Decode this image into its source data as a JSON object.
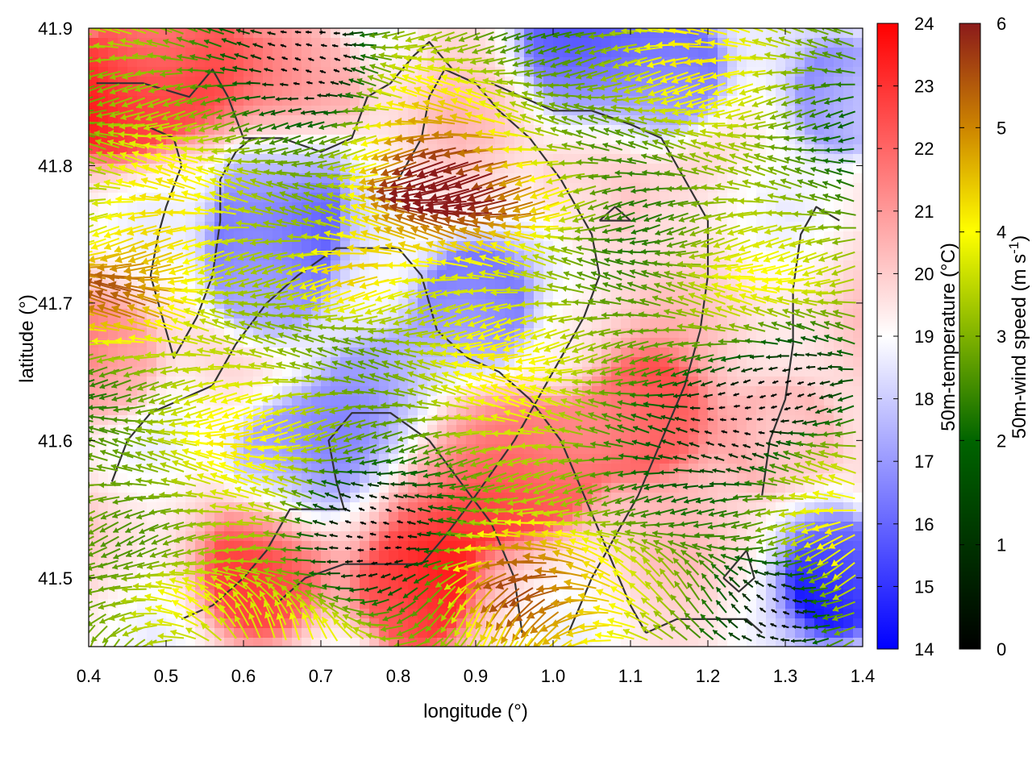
{
  "chart_data": {
    "type": "heatmap",
    "title": "",
    "xlabel": "longitude (°)",
    "ylabel": "latitude (°)",
    "xlim": [
      0.4,
      1.4
    ],
    "ylim": [
      41.45,
      41.9
    ],
    "x_ticks": [
      "0.4",
      "0.5",
      "0.6",
      "0.7",
      "0.8",
      "0.9",
      "1.0",
      "1.1",
      "1.2",
      "1.3",
      "1.4"
    ],
    "y_ticks": [
      "41.5",
      "41.6",
      "41.7",
      "41.8",
      "41.9"
    ],
    "temperature_colorbar": {
      "label": "50m-temperature (°C)",
      "range": [
        14,
        24
      ],
      "ticks": [
        "14",
        "15",
        "16",
        "17",
        "18",
        "19",
        "20",
        "21",
        "22",
        "23",
        "24"
      ],
      "colors": [
        "#0000ff",
        "#ffffff",
        "#ff0000"
      ]
    },
    "wind_colorbar": {
      "label": "50m-wind speed (m s-1)",
      "range": [
        0,
        6
      ],
      "ticks": [
        "0",
        "1",
        "2",
        "3",
        "4",
        "5",
        "6"
      ],
      "colors": [
        "#000000",
        "#006400",
        "#ffff00",
        "#cd8500",
        "#8b1a1a"
      ]
    },
    "temperature_field": {
      "description_free": true,
      "hot_spots": [
        {
          "lon": 0.43,
          "lat": 41.85,
          "t": 23.0
        },
        {
          "lon": 0.52,
          "lat": 41.88,
          "t": 22.5
        },
        {
          "lon": 0.68,
          "lat": 41.86,
          "t": 21.0
        },
        {
          "lon": 0.82,
          "lat": 41.49,
          "t": 23.0
        },
        {
          "lon": 0.62,
          "lat": 41.5,
          "t": 22.5
        },
        {
          "lon": 0.98,
          "lat": 41.58,
          "t": 22.5
        },
        {
          "lon": 1.12,
          "lat": 41.62,
          "t": 22.0
        },
        {
          "lon": 0.88,
          "lat": 41.58,
          "t": 21.5
        },
        {
          "lon": 1.3,
          "lat": 41.6,
          "t": 21.0
        },
        {
          "lon": 1.05,
          "lat": 41.78,
          "t": 20.5
        },
        {
          "lon": 0.42,
          "lat": 41.66,
          "t": 21.0
        }
      ],
      "cold_spots": [
        {
          "lon": 0.65,
          "lat": 41.78,
          "t": 16.5
        },
        {
          "lon": 0.63,
          "lat": 41.72,
          "t": 16.5
        },
        {
          "lon": 0.9,
          "lat": 41.7,
          "t": 16.0
        },
        {
          "lon": 1.15,
          "lat": 41.87,
          "t": 16.0
        },
        {
          "lon": 1.03,
          "lat": 41.89,
          "t": 16.5
        },
        {
          "lon": 1.37,
          "lat": 41.5,
          "t": 15.0
        },
        {
          "lon": 0.66,
          "lat": 41.58,
          "t": 17.0
        },
        {
          "lon": 0.78,
          "lat": 41.63,
          "t": 17.5
        },
        {
          "lon": 1.38,
          "lat": 41.85,
          "t": 17.0
        }
      ]
    },
    "wind_field": {
      "dominant_direction": "from east (arrows pointing west)",
      "strong_zones": [
        {
          "lon": 0.44,
          "lat": 41.7,
          "speed": 6.0
        },
        {
          "lon": 0.87,
          "lat": 41.78,
          "speed": 5.8
        },
        {
          "lon": 0.75,
          "lat": 41.72,
          "speed": 5.5
        },
        {
          "lon": 0.52,
          "lat": 41.48,
          "speed": 5.0
        },
        {
          "lon": 0.95,
          "lat": 41.5,
          "speed": 5.2
        },
        {
          "lon": 1.0,
          "lat": 41.77,
          "speed": 4.8
        }
      ],
      "calm_zones": [
        {
          "lon": 0.76,
          "lat": 41.53,
          "speed": 0.5
        },
        {
          "lon": 0.7,
          "lat": 41.88,
          "speed": 0.6
        },
        {
          "lon": 1.25,
          "lat": 41.62,
          "speed": 0.8
        },
        {
          "lon": 1.33,
          "lat": 41.65,
          "speed": 0.8
        },
        {
          "lon": 1.3,
          "lat": 41.48,
          "speed": 0.8
        }
      ]
    },
    "contours": [
      [
        [
          0.41,
          41.86
        ],
        [
          0.47,
          41.86
        ],
        [
          0.53,
          41.85
        ],
        [
          0.56,
          41.87
        ],
        [
          0.58,
          41.85
        ],
        [
          0.6,
          41.82
        ],
        [
          0.65,
          41.82
        ],
        [
          0.7,
          41.81
        ],
        [
          0.74,
          41.82
        ],
        [
          0.76,
          41.85
        ],
        [
          0.79,
          41.86
        ],
        [
          0.82,
          41.88
        ],
        [
          0.84,
          41.89
        ],
        [
          0.87,
          41.87
        ]
      ],
      [
        [
          0.47,
          41.83
        ],
        [
          0.51,
          41.82
        ],
        [
          0.52,
          41.8
        ],
        [
          0.5,
          41.77
        ],
        [
          0.49,
          41.75
        ],
        [
          0.48,
          41.72
        ],
        [
          0.5,
          41.68
        ],
        [
          0.51,
          41.66
        ],
        [
          0.54,
          41.69
        ],
        [
          0.56,
          41.72
        ],
        [
          0.57,
          41.76
        ],
        [
          0.57,
          41.79
        ],
        [
          0.59,
          41.81
        ],
        [
          0.61,
          41.82
        ]
      ],
      [
        [
          0.43,
          41.57
        ],
        [
          0.45,
          41.6
        ],
        [
          0.48,
          41.62
        ],
        [
          0.52,
          41.63
        ],
        [
          0.56,
          41.64
        ],
        [
          0.59,
          41.67
        ],
        [
          0.63,
          41.7
        ],
        [
          0.67,
          41.72
        ],
        [
          0.72,
          41.74
        ],
        [
          0.76,
          41.74
        ],
        [
          0.8,
          41.74
        ],
        [
          0.83,
          41.72
        ],
        [
          0.85,
          41.68
        ],
        [
          0.89,
          41.66
        ],
        [
          0.93,
          41.65
        ],
        [
          0.97,
          41.63
        ],
        [
          1.01,
          41.6
        ],
        [
          1.04,
          41.56
        ],
        [
          1.07,
          41.52
        ],
        [
          1.1,
          41.48
        ],
        [
          1.12,
          41.46
        ]
      ],
      [
        [
          0.52,
          41.47
        ],
        [
          0.56,
          41.48
        ],
        [
          0.6,
          41.5
        ],
        [
          0.63,
          41.52
        ],
        [
          0.66,
          41.55
        ],
        [
          0.7,
          41.55
        ],
        [
          0.73,
          41.55
        ],
        [
          0.72,
          41.57
        ],
        [
          0.71,
          41.6
        ],
        [
          0.74,
          41.62
        ],
        [
          0.79,
          41.62
        ],
        [
          0.84,
          41.6
        ],
        [
          0.88,
          41.57
        ],
        [
          0.92,
          41.54
        ],
        [
          0.95,
          41.5
        ],
        [
          0.96,
          41.46
        ]
      ],
      [
        [
          0.64,
          41.48
        ],
        [
          0.68,
          41.5
        ],
        [
          0.73,
          41.51
        ],
        [
          0.78,
          41.51
        ],
        [
          0.83,
          41.51
        ],
        [
          0.86,
          41.53
        ],
        [
          0.9,
          41.56
        ],
        [
          0.95,
          41.6
        ],
        [
          1.0,
          41.65
        ],
        [
          1.04,
          41.69
        ],
        [
          1.06,
          41.72
        ],
        [
          1.05,
          41.75
        ],
        [
          1.01,
          41.79
        ],
        [
          0.97,
          41.82
        ],
        [
          0.93,
          41.84
        ],
        [
          0.9,
          41.86
        ],
        [
          0.86,
          41.87
        ],
        [
          0.84,
          41.85
        ],
        [
          0.83,
          41.82
        ],
        [
          0.8,
          41.79
        ]
      ],
      [
        [
          1.02,
          41.46
        ],
        [
          1.05,
          41.5
        ],
        [
          1.08,
          41.53
        ],
        [
          1.11,
          41.56
        ],
        [
          1.14,
          41.6
        ],
        [
          1.17,
          41.64
        ],
        [
          1.19,
          41.68
        ],
        [
          1.2,
          41.72
        ],
        [
          1.2,
          41.76
        ],
        [
          1.17,
          41.79
        ],
        [
          1.14,
          41.82
        ],
        [
          1.1,
          41.83
        ],
        [
          1.05,
          41.84
        ],
        [
          1.0,
          41.84
        ],
        [
          0.96,
          41.85
        ],
        [
          0.92,
          41.86
        ]
      ],
      [
        [
          1.12,
          41.46
        ],
        [
          1.16,
          41.47
        ],
        [
          1.21,
          41.47
        ],
        [
          1.25,
          41.47
        ],
        [
          1.27,
          41.46
        ]
      ],
      [
        [
          1.22,
          41.5
        ],
        [
          1.25,
          41.52
        ],
        [
          1.26,
          41.5
        ],
        [
          1.24,
          41.49
        ],
        [
          1.22,
          41.5
        ]
      ],
      [
        [
          1.27,
          41.56
        ],
        [
          1.28,
          41.6
        ],
        [
          1.3,
          41.63
        ],
        [
          1.31,
          41.67
        ],
        [
          1.31,
          41.71
        ],
        [
          1.32,
          41.75
        ],
        [
          1.34,
          41.77
        ],
        [
          1.37,
          41.76
        ]
      ],
      [
        [
          1.06,
          41.76
        ],
        [
          1.08,
          41.76
        ],
        [
          1.1,
          41.76
        ],
        [
          1.08,
          41.77
        ],
        [
          1.06,
          41.76
        ]
      ]
    ]
  }
}
